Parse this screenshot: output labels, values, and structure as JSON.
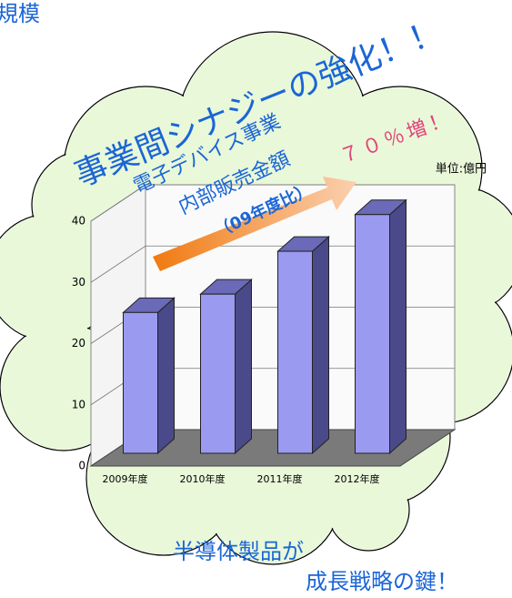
{
  "header": {
    "title": "規模"
  },
  "chart_data": {
    "type": "bar3d",
    "unit": "単位:億円",
    "categories": [
      "2009年度",
      "2010年度",
      "2011年度",
      "2012年度"
    ],
    "values": [
      23,
      26,
      33,
      39
    ],
    "color": "#9a9af0",
    "ylim": [
      0,
      40
    ],
    "yticks": [
      0,
      10,
      20,
      30,
      40
    ],
    "grid": true
  },
  "annotations": {
    "headline": "事業間シナジーの強化！！",
    "line1": "電子デバイス事業",
    "line2": "内部販売金額",
    "line3": "（09年度比）",
    "growth": "７０％増！"
  },
  "footer": {
    "line1": "半導体製品が",
    "line2": "成長戦略の鍵！"
  }
}
